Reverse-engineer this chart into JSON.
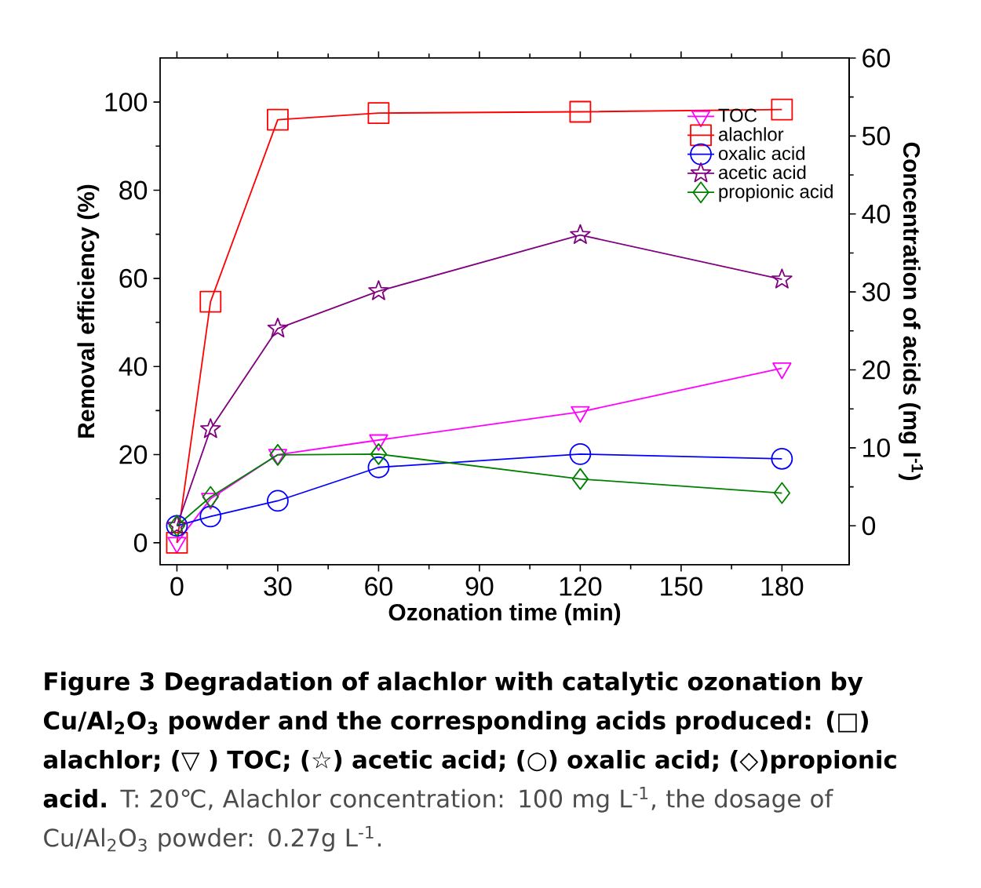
{
  "chart_data": {
    "type": "line",
    "title": "Figure 3 Degradation of alachlor with catalytic ozonation by Cu/Al$_{2}$O$_{3}$ powder and the corresponding acids produced: (□) alachlor; (▽ ) TOC; (☆) acetic acid; (○) oxalic acid; (◇)propionic acid.",
    "annotations": [
      "T: 20℃, Alachlor concentration: 100 mg L$^{-1}$, the dosage of Cu/Al$_{2}$O$_{3}$ powder: 0.27g L$^{-1}$."
    ],
    "xlabel": "Ozonation time (min)",
    "ylabel": "Removal efficiency (%)",
    "y2label": "Concentration of acids (mg l$^{-1}$)",
    "x": [
      0,
      10,
      30,
      60,
      120,
      180
    ],
    "xlim": [
      -5,
      200
    ],
    "xticks": [
      0,
      30,
      60,
      90,
      120,
      150,
      180
    ],
    "ylim": [
      -5,
      110
    ],
    "yticks": [
      0,
      20,
      40,
      60,
      80,
      100
    ],
    "y2lim": [
      -5,
      60
    ],
    "y2ticks": [
      0,
      10,
      20,
      30,
      40,
      50,
      60
    ],
    "legend": "top right",
    "line_style": "solid",
    "series": [
      {
        "name": "TOC",
        "color": "#ff00ff",
        "marker": "triangle",
        "values": [
          0,
          10,
          20,
          23.3,
          29.7,
          39.6
        ]
      },
      {
        "name": "alachlor",
        "color": "#ff0000",
        "marker": "square",
        "values": [
          0,
          54.7,
          96,
          97.5,
          97.8,
          98.3
        ]
      },
      {
        "name": "oxalic acid",
        "color": "#0000ff",
        "marker": "circle",
        "axis": "y2",
        "values": [
          0,
          1.2,
          3.2,
          7.5,
          9.2,
          8.6
        ]
      },
      {
        "name": "acetic acid",
        "color": "#800080",
        "marker": "star",
        "axis": "y2",
        "values": [
          0,
          12.4,
          25.3,
          30.1,
          37.3,
          31.6
        ]
      },
      {
        "name": "propionic acid",
        "color": "#008000",
        "marker": "diamond",
        "axis": "y2",
        "values": [
          0,
          3.7,
          9.1,
          9.2,
          6.0,
          4.2
        ]
      }
    ]
  }
}
